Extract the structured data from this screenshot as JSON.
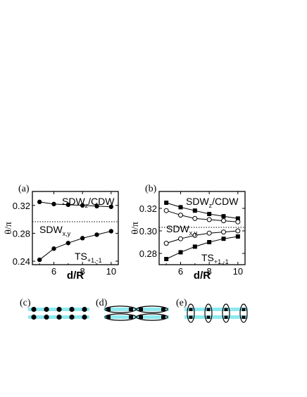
{
  "colors": {
    "line": "#000000",
    "band": "#8fe8ef",
    "white": "#ffffff"
  },
  "chart_data": [
    {
      "type": "line",
      "panel_label": "(a)",
      "xlabel": "d/R",
      "ylabel": "θ/π",
      "xlim": [
        4.5,
        10.5
      ],
      "ylim": [
        0.235,
        0.34
      ],
      "xticks": [
        6,
        8,
        10
      ],
      "yticks": [
        0.24,
        0.28,
        0.32
      ],
      "ytick_labels": [
        "0.24",
        "0.28",
        "0.32"
      ],
      "dotted_line_y": 0.3,
      "region_labels": {
        "upper": {
          "main": "SDW",
          "sub": "z",
          "rest": "/CDW"
        },
        "middle": {
          "main": "SDW",
          "sub": "x,y"
        },
        "lower": {
          "main": "TS",
          "sub": "+1,-1"
        }
      },
      "series": [
        {
          "marker": "filled-circle",
          "x": [
            5,
            6,
            7,
            8,
            9,
            10
          ],
          "values": [
            0.325,
            0.322,
            0.321,
            0.32,
            0.319,
            0.318
          ]
        },
        {
          "marker": "filled-circle",
          "x": [
            5,
            6,
            7,
            8,
            9,
            10
          ],
          "values": [
            0.242,
            0.258,
            0.266,
            0.273,
            0.278,
            0.283
          ]
        }
      ]
    },
    {
      "type": "line",
      "panel_label": "(b)",
      "xlabel": "d/R",
      "ylabel": "θ/π",
      "xlim": [
        4.5,
        10.5
      ],
      "ylim": [
        0.27,
        0.335
      ],
      "xticks": [
        6,
        8,
        10
      ],
      "yticks": [
        0.28,
        0.3,
        0.32
      ],
      "ytick_labels": [
        "0.28",
        "0.30",
        "0.32"
      ],
      "dotted_line_y": 0.303,
      "region_labels": {
        "upper": {
          "main": "SDW",
          "sub": "z",
          "rest": "/CDW"
        },
        "middle": {
          "main": "SDW",
          "sub": "x,y"
        },
        "lower": {
          "main": "TS",
          "sub": "+1,-1"
        }
      },
      "series": [
        {
          "marker": "filled-square",
          "x": [
            5,
            6,
            7,
            8,
            9,
            10
          ],
          "values": [
            0.325,
            0.321,
            0.318,
            0.315,
            0.313,
            0.311
          ]
        },
        {
          "marker": "open-circle",
          "x": [
            5,
            6,
            7,
            8,
            9,
            10
          ],
          "values": [
            0.318,
            0.314,
            0.311,
            0.31,
            0.309,
            0.308
          ]
        },
        {
          "marker": "open-circle",
          "x": [
            5,
            6,
            7,
            8,
            9,
            10
          ],
          "values": [
            0.289,
            0.293,
            0.296,
            0.298,
            0.299,
            0.3
          ]
        },
        {
          "marker": "filled-square",
          "x": [
            5,
            6,
            7,
            8,
            9,
            10
          ],
          "values": [
            0.275,
            0.281,
            0.286,
            0.29,
            0.293,
            0.295
          ]
        }
      ]
    }
  ],
  "diagrams": [
    {
      "label": "(c)",
      "description_marks": "two chains of dots"
    },
    {
      "label": "(d)",
      "description_marks": "paired ellipses along chains"
    },
    {
      "label": "(e)",
      "description_marks": "vertical ellipses across chains"
    }
  ]
}
